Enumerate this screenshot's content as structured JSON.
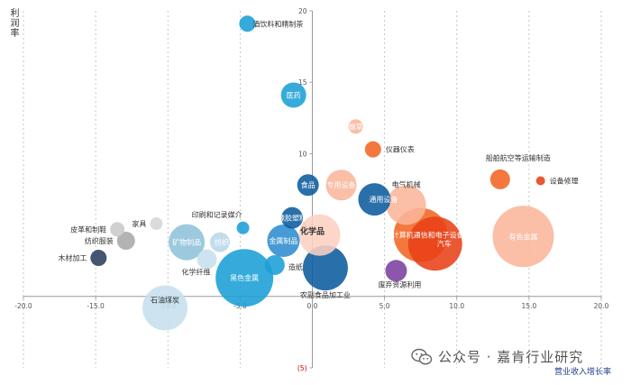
{
  "chart_data": {
    "type": "bubble",
    "title": "",
    "ylabel": "利润率",
    "xlabel": "营业收入增长率",
    "xlim": [
      -20,
      20
    ],
    "ylim": [
      -5,
      20
    ],
    "x_ticks": [
      "-20.0",
      "-15.0",
      "-10.0",
      "-5.0",
      "0.0",
      "5.0",
      "10.0",
      "15.0",
      "20.0"
    ],
    "y_ticks": [
      "20",
      "15",
      "10",
      "5",
      "(5)"
    ],
    "grid": "vertical dashed",
    "points": [
      {
        "label": "酒饮料和精制茶",
        "x": -4.5,
        "y": 19.1,
        "r": 9,
        "color": "#1a9fd6",
        "light": false
      },
      {
        "label": "医药",
        "x": -1.3,
        "y": 14.1,
        "r": 14,
        "color": "#1a9fd6",
        "light": true
      },
      {
        "label": "烟草",
        "x": 3.0,
        "y": 11.9,
        "r": 8,
        "color": "#fbb59a",
        "light": true
      },
      {
        "label": "仪器仪表",
        "x": 4.2,
        "y": 10.3,
        "r": 9,
        "color": "#f26522",
        "light": false
      },
      {
        "label": "船舶航空等运输制造",
        "x": 13.0,
        "y": 8.2,
        "r": 11,
        "color": "#f26522",
        "light": false
      },
      {
        "label": "设备修理",
        "x": 15.8,
        "y": 8.1,
        "r": 5,
        "color": "#e84118",
        "light": false
      },
      {
        "label": "食品",
        "x": -0.3,
        "y": 7.8,
        "r": 12,
        "color": "#0b5c9e",
        "light": true
      },
      {
        "label": "专用设备",
        "x": 2.0,
        "y": 7.8,
        "r": 17,
        "color": "#fbb59a",
        "light": true
      },
      {
        "label": "通用设备",
        "x": 4.3,
        "y": 6.8,
        "r": 18,
        "color": "#0b5c9e",
        "light": true
      },
      {
        "label": "电气机械",
        "x": 6.5,
        "y": 6.4,
        "r": 22,
        "color": "#fbb59a",
        "light": false
      },
      {
        "label": "印刷和记录媒介",
        "x": -4.8,
        "y": 4.8,
        "r": 7,
        "color": "#1a9fd6",
        "light": false
      },
      {
        "label": "家具",
        "x": -10.8,
        "y": 5.1,
        "r": 7,
        "color": "#d6d6d6",
        "light": false
      },
      {
        "label": "橡胶塑料",
        "x": -1.4,
        "y": 5.5,
        "r": 12,
        "color": "#0b5c9e",
        "light": true
      },
      {
        "label": "皮革和制鞋",
        "x": -13.5,
        "y": 4.7,
        "r": 8,
        "color": "#c9c9c9",
        "light": false
      },
      {
        "label": "纺织服装",
        "x": -12.9,
        "y": 3.9,
        "r": 10,
        "color": "#a9a9a9",
        "light": false
      },
      {
        "label": "矿物制品",
        "x": -8.7,
        "y": 3.8,
        "r": 20,
        "color": "#8fc2db",
        "light": true
      },
      {
        "label": "纺织",
        "x": -6.4,
        "y": 3.8,
        "r": 11,
        "color": "#b8d8e8",
        "light": true
      },
      {
        "label": "金属制品",
        "x": -2.0,
        "y": 3.9,
        "r": 18,
        "color": "#2e8ccf",
        "light": true
      },
      {
        "label": "化学品",
        "x": 0.5,
        "y": 4.3,
        "r": 23,
        "color": "#fcd0c0",
        "light": false
      },
      {
        "label": "计算机通信和电子设备",
        "x": 7.5,
        "y": 4.3,
        "r": 30,
        "color": "#f26522",
        "light": true
      },
      {
        "label": "汽车",
        "x": 8.5,
        "y": 3.7,
        "r": 30,
        "color": "#e84118",
        "light": true
      },
      {
        "label": "有色金属",
        "x": 14.6,
        "y": 4.2,
        "r": 34,
        "color": "#fbb59a",
        "light": true
      },
      {
        "label": "木材加工",
        "x": -14.8,
        "y": 2.7,
        "r": 9,
        "color": "#2a3f5f",
        "light": false
      },
      {
        "label": "化学纤维",
        "x": -7.3,
        "y": 2.6,
        "r": 11,
        "color": "#c6e0ee",
        "light": false
      },
      {
        "label": "黑色金属",
        "x": -4.7,
        "y": 1.3,
        "r": 32,
        "color": "#1a9fd6",
        "light": true
      },
      {
        "label": "造纸",
        "x": -2.6,
        "y": 2.2,
        "r": 11,
        "color": "#1a9fd6",
        "light": false
      },
      {
        "label": "农副食品加工业",
        "x": 0.9,
        "y": 2.0,
        "r": 25,
        "color": "#0b5c9e",
        "light": false
      },
      {
        "label": "废弃资源利用",
        "x": 5.8,
        "y": 1.8,
        "r": 12,
        "color": "#7b3fa0",
        "light": false
      },
      {
        "label": "石油煤炭",
        "x": -10.2,
        "y": -0.8,
        "r": 25,
        "color": "#c6e0ee",
        "light": false
      }
    ]
  },
  "watermark": {
    "icon": "wechat-icon",
    "text": "公众号 · 嘉肯行业研究"
  }
}
